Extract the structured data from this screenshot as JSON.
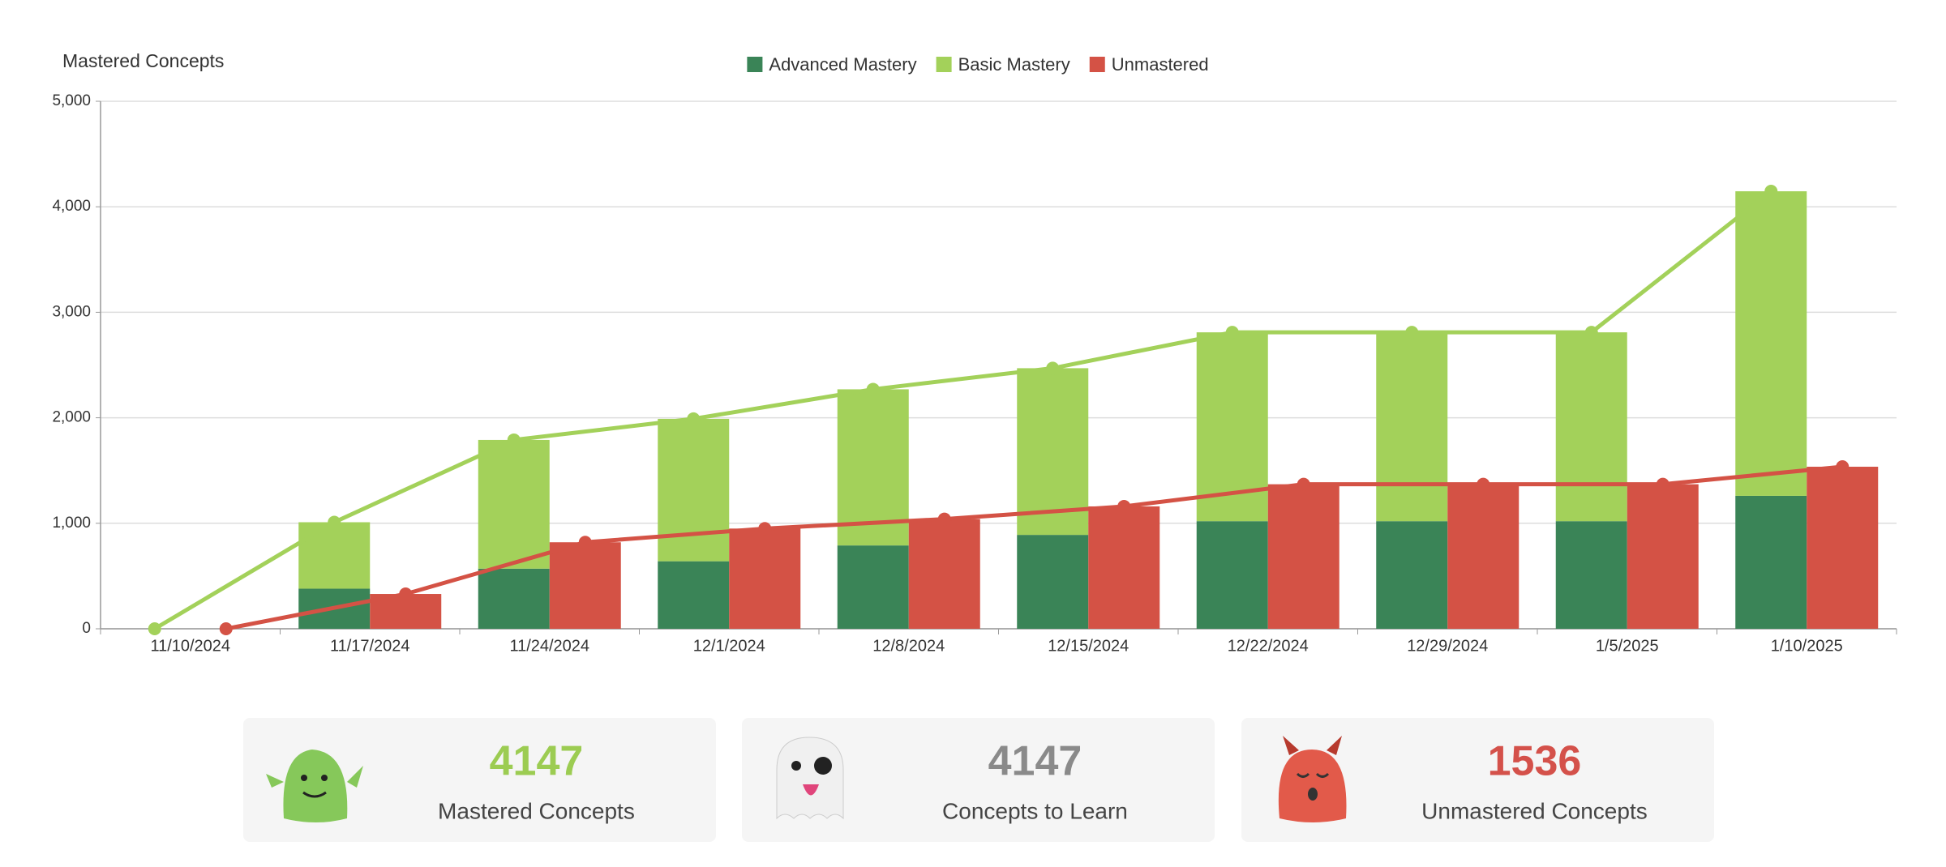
{
  "chart_data": {
    "type": "bar",
    "title": "Mastered Concepts",
    "categories": [
      "11/10/2024",
      "11/17/2024",
      "11/24/2024",
      "12/1/2024",
      "12/8/2024",
      "12/15/2024",
      "12/22/2024",
      "12/29/2024",
      "1/5/2025",
      "1/10/2025"
    ],
    "series": [
      {
        "name": "Advanced Mastery",
        "color": "#3a8457",
        "stack": "mastered",
        "values": [
          0,
          380,
          570,
          640,
          790,
          890,
          1020,
          1020,
          1020,
          1260
        ]
      },
      {
        "name": "Basic Mastery",
        "color": "#a3d15a",
        "stack": "mastered",
        "values": [
          0,
          630,
          1220,
          1350,
          1480,
          1580,
          1790,
          1790,
          1790,
          2887
        ]
      },
      {
        "name": "Unmastered",
        "color": "#d45245",
        "stack": "unmastered",
        "values": [
          0,
          330,
          820,
          950,
          1040,
          1160,
          1370,
          1370,
          1370,
          1536
        ]
      }
    ],
    "lines": [
      {
        "color": "#a3d15a",
        "stack": "mastered",
        "values": [
          0,
          1010,
          1790,
          1990,
          2270,
          2470,
          2810,
          2810,
          2810,
          4147
        ]
      },
      {
        "color": "#d45245",
        "stack": "unmastered",
        "values": [
          0,
          330,
          820,
          950,
          1040,
          1160,
          1370,
          1370,
          1370,
          1536
        ]
      }
    ],
    "ylim": [
      0,
      5000
    ],
    "yticks": [
      0,
      {
        "value": 1000,
        "label": "1,000"
      },
      {
        "value": 2000,
        "label": "2,000"
      },
      {
        "value": 3000,
        "label": "3,000"
      },
      {
        "value": 4000,
        "label": "4,000"
      },
      {
        "value": 5000,
        "label": "5,000"
      }
    ],
    "grid": true,
    "legend": "top"
  },
  "cards": [
    {
      "value": 4147,
      "label": "Mastered Concepts",
      "color": "#9ccc52"
    },
    {
      "value": 4147,
      "label": "Concepts to Learn",
      "color": "#8a8a8a"
    },
    {
      "value": 1536,
      "label": "Unmastered Concepts",
      "color": "#d4514a"
    }
  ]
}
